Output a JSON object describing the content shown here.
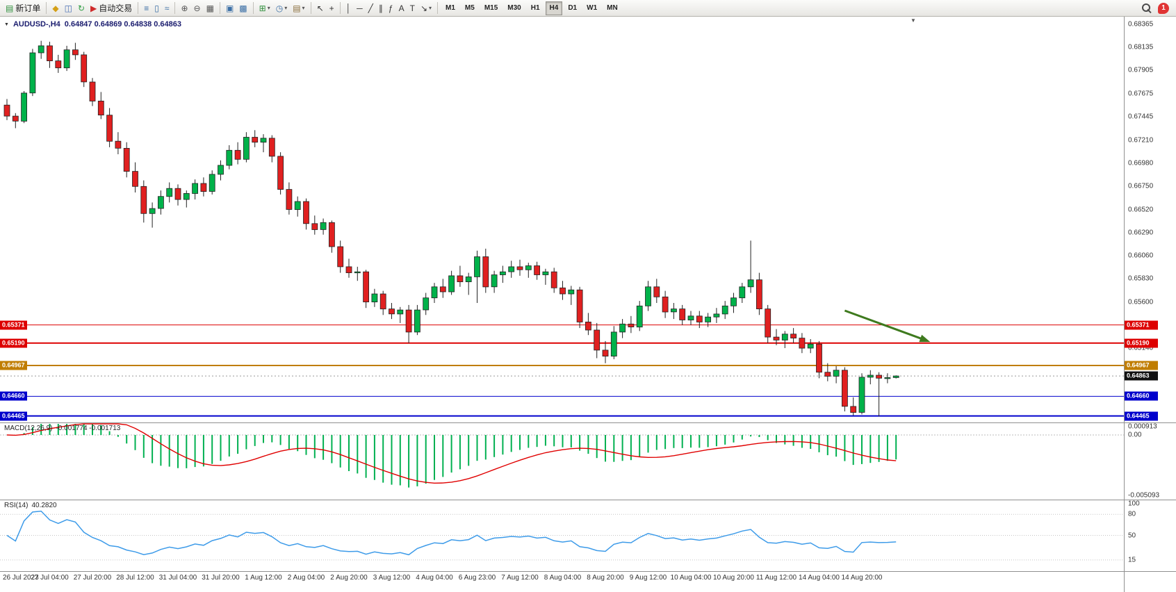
{
  "toolbar": {
    "caret_glyph": "▾",
    "groups": [
      {
        "items": [
          {
            "name": "new-order-button",
            "glyph": "▤",
            "color": "#2f8f3c",
            "label": "新订单"
          }
        ]
      },
      {
        "items": [
          {
            "name": "market-watch-icon",
            "glyph": "◆",
            "color": "#d4a017"
          },
          {
            "name": "data-window-icon",
            "glyph": "◫",
            "color": "#4a6fb5"
          },
          {
            "name": "refresh-icon",
            "glyph": "↻",
            "color": "#2f9e44"
          },
          {
            "name": "autotrading-button",
            "glyph": "▶",
            "color": "#cf2b2b",
            "label": "自动交易"
          }
        ]
      },
      {
        "items": [
          {
            "name": "bar-chart-icon",
            "glyph": "≡",
            "color": "#3a6ea5"
          },
          {
            "name": "candlestick-chart-icon",
            "glyph": "▯",
            "color": "#3a6ea5"
          },
          {
            "name": "line-chart-icon",
            "glyph": "≈",
            "color": "#3a6ea5"
          }
        ]
      },
      {
        "items": [
          {
            "name": "zoom-in-icon",
            "glyph": "⊕",
            "color": "#555555"
          },
          {
            "name": "zoom-out-icon",
            "glyph": "⊖",
            "color": "#555555"
          },
          {
            "name": "tile-windows-icon",
            "glyph": "▦",
            "color": "#555555"
          }
        ]
      },
      {
        "items": [
          {
            "name": "auto-arrange-icon",
            "glyph": "▣",
            "color": "#3a6ea5"
          },
          {
            "name": "cascade-windows-icon",
            "glyph": "▩",
            "color": "#3a6ea5"
          }
        ]
      },
      {
        "items": [
          {
            "name": "indicators-button",
            "glyph": "⊞",
            "color": "#2f8f3c",
            "caret": true
          },
          {
            "name": "periods-button",
            "glyph": "◷",
            "color": "#3a6ea5",
            "caret": true
          },
          {
            "name": "templates-button",
            "glyph": "▤",
            "color": "#8a6d3b",
            "caret": true
          }
        ]
      },
      {
        "items": [
          {
            "name": "cursor-icon",
            "glyph": "↖",
            "color": "#333333"
          },
          {
            "name": "crosshair-icon",
            "glyph": "+",
            "color": "#333333"
          }
        ]
      },
      {
        "items": [
          {
            "name": "vertical-line-icon",
            "glyph": "│",
            "color": "#333333"
          },
          {
            "name": "horizontal-line-icon",
            "glyph": "─",
            "color": "#333333"
          },
          {
            "name": "trendline-icon",
            "glyph": "╱",
            "color": "#333333"
          },
          {
            "name": "channel-icon",
            "glyph": "∥",
            "color": "#333333"
          },
          {
            "name": "fibonacci-icon",
            "glyph": "ƒ",
            "color": "#333333"
          },
          {
            "name": "text-icon",
            "glyph": "A",
            "color": "#333333"
          },
          {
            "name": "label-icon",
            "glyph": "T",
            "color": "#333333"
          },
          {
            "name": "arrows-button",
            "glyph": "↘",
            "color": "#333333",
            "caret": true
          }
        ]
      }
    ],
    "timeframes": {
      "items": [
        "M1",
        "M5",
        "M15",
        "M30",
        "H1",
        "H4",
        "D1",
        "W1",
        "MN"
      ],
      "active": "H4"
    },
    "notification_badge": "1"
  },
  "chart": {
    "title": "AUDUSD-,H4",
    "ohlc_text": "0.64847  0.64869  0.64838  0.64863",
    "symbol_menu_glyph": "▼",
    "shift_marker_glyph": "▼"
  },
  "labels": {
    "macd_name": "MACD(12,26,9)",
    "macd_values": "-0.001774 -0.001713",
    "rsi_name": "RSI(14)",
    "rsi_value": "40.2820"
  },
  "chart_data": {
    "type": "candlestick",
    "symbol": "AUDUSD-",
    "timeframe": "H4",
    "title": "AUDUSD-,H4",
    "current_bar_ohlc": {
      "open": "0.64847",
      "high": "0.64869",
      "low": "0.64838",
      "close": "0.64863"
    },
    "y_ticks": [
      "0.68365",
      "0.68135",
      "0.67905",
      "0.67675",
      "0.67445",
      "0.67210",
      "0.66980",
      "0.66750",
      "0.66520",
      "0.66290",
      "0.66060",
      "0.65830",
      "0.65600",
      "0.65140"
    ],
    "x_labels": [
      "26 Jul 2023",
      "27 Jul 04:00",
      "27 Jul 20:00",
      "28 Jul 12:00",
      "31 Jul 04:00",
      "31 Jul 20:00",
      "1 Aug 12:00",
      "2 Aug 04:00",
      "2 Aug 20:00",
      "3 Aug 12:00",
      "4 Aug 04:00",
      "6 Aug 23:00",
      "7 Aug 12:00",
      "8 Aug 04:00",
      "8 Aug 20:00",
      "9 Aug 12:00",
      "10 Aug 04:00",
      "10 Aug 20:00",
      "11 Aug 12:00",
      "14 Aug 04:00",
      "14 Aug 20:00"
    ],
    "hlines": [
      {
        "price": 0.65371,
        "label": "0.65371",
        "color": "#dd0000",
        "width": 1
      },
      {
        "price": 0.6519,
        "label": "0.65190",
        "color": "#dd0000",
        "width": 2
      },
      {
        "price": 0.64967,
        "label": "0.64967",
        "color": "#c07d00",
        "width": 2
      },
      {
        "price": 0.6466,
        "label": "0.64660",
        "color": "#0000cc",
        "width": 1
      },
      {
        "price": 0.64465,
        "label": "0.64465",
        "color": "#0000cc",
        "width": 2
      }
    ],
    "current_price": {
      "value": 0.64863,
      "label": "0.64863",
      "color": "#111111"
    },
    "up_color": "#00b24a",
    "down_color": "#e02020",
    "annotation_arrow": {
      "from": {
        "bar": 98,
        "price": 0.65514
      },
      "to": {
        "bar": 108,
        "price": 0.65202
      },
      "color": "#3e7a1e"
    },
    "indicators": [
      {
        "name": "MACD",
        "params": "12,26,9",
        "main_value": "-0.001774",
        "signal_value": "-0.001713",
        "y_ticks": [
          "0.000913",
          "0.00",
          "-0.005093"
        ],
        "histogram_color": "#00b050",
        "signal_color": "#e00000"
      },
      {
        "name": "RSI",
        "params": "14",
        "value": "40.2820",
        "y_ticks": [
          "100",
          "80",
          "50",
          "15"
        ],
        "line_color": "#3d9be9"
      }
    ],
    "candles": [
      [
        0.6756,
        0.6762,
        0.6741,
        0.6745
      ],
      [
        0.6745,
        0.6748,
        0.6733,
        0.674
      ],
      [
        0.674,
        0.677,
        0.6738,
        0.6768
      ],
      [
        0.6768,
        0.6812,
        0.6765,
        0.6808
      ],
      [
        0.6808,
        0.682,
        0.6802,
        0.6815
      ],
      [
        0.6815,
        0.6819,
        0.6793,
        0.68
      ],
      [
        0.68,
        0.6806,
        0.6788,
        0.6793
      ],
      [
        0.6793,
        0.6815,
        0.679,
        0.6811
      ],
      [
        0.6811,
        0.6818,
        0.6801,
        0.6806
      ],
      [
        0.6806,
        0.6809,
        0.6774,
        0.6779
      ],
      [
        0.6779,
        0.6783,
        0.6755,
        0.676
      ],
      [
        0.676,
        0.6769,
        0.6742,
        0.6746
      ],
      [
        0.6746,
        0.6753,
        0.6714,
        0.672
      ],
      [
        0.672,
        0.6729,
        0.6707,
        0.6713
      ],
      [
        0.6713,
        0.6719,
        0.6684,
        0.669
      ],
      [
        0.669,
        0.6699,
        0.6669,
        0.6675
      ],
      [
        0.6675,
        0.6681,
        0.6639,
        0.6648
      ],
      [
        0.6648,
        0.6659,
        0.6634,
        0.6653
      ],
      [
        0.6653,
        0.6671,
        0.6647,
        0.6665
      ],
      [
        0.6665,
        0.6679,
        0.6659,
        0.6673
      ],
      [
        0.6673,
        0.6677,
        0.6656,
        0.6662
      ],
      [
        0.6662,
        0.6671,
        0.6654,
        0.6668
      ],
      [
        0.6668,
        0.6682,
        0.6662,
        0.6678
      ],
      [
        0.6678,
        0.6684,
        0.6665,
        0.667
      ],
      [
        0.667,
        0.6691,
        0.6667,
        0.6687
      ],
      [
        0.6687,
        0.6701,
        0.6681,
        0.6696
      ],
      [
        0.6696,
        0.6716,
        0.6692,
        0.6711
      ],
      [
        0.6711,
        0.6719,
        0.6697,
        0.6702
      ],
      [
        0.6702,
        0.6729,
        0.6699,
        0.6724
      ],
      [
        0.6724,
        0.6731,
        0.6714,
        0.6719
      ],
      [
        0.6719,
        0.6727,
        0.6709,
        0.6723
      ],
      [
        0.6723,
        0.6726,
        0.6699,
        0.6705
      ],
      [
        0.6705,
        0.6709,
        0.6667,
        0.6672
      ],
      [
        0.6672,
        0.6679,
        0.6647,
        0.6652
      ],
      [
        0.6652,
        0.6665,
        0.6645,
        0.666
      ],
      [
        0.666,
        0.6663,
        0.6632,
        0.6638
      ],
      [
        0.6638,
        0.6646,
        0.6627,
        0.6632
      ],
      [
        0.6632,
        0.6643,
        0.6627,
        0.6639
      ],
      [
        0.6639,
        0.6641,
        0.6609,
        0.6615
      ],
      [
        0.6615,
        0.6621,
        0.6589,
        0.6595
      ],
      [
        0.6595,
        0.6603,
        0.6584,
        0.6589
      ],
      [
        0.6589,
        0.6595,
        0.6581,
        0.659
      ],
      [
        0.659,
        0.6592,
        0.6554,
        0.656
      ],
      [
        0.656,
        0.6573,
        0.6555,
        0.6568
      ],
      [
        0.6568,
        0.6571,
        0.6547,
        0.6553
      ],
      [
        0.6553,
        0.6559,
        0.6543,
        0.6548
      ],
      [
        0.6548,
        0.6555,
        0.6539,
        0.6552
      ],
      [
        0.6552,
        0.6557,
        0.6519,
        0.653
      ],
      [
        0.653,
        0.6557,
        0.6527,
        0.6552
      ],
      [
        0.6552,
        0.6569,
        0.6547,
        0.6564
      ],
      [
        0.6564,
        0.6579,
        0.6559,
        0.6575
      ],
      [
        0.6575,
        0.6583,
        0.6564,
        0.657
      ],
      [
        0.657,
        0.6591,
        0.6567,
        0.6586
      ],
      [
        0.6586,
        0.6596,
        0.6575,
        0.658
      ],
      [
        0.658,
        0.6589,
        0.6567,
        0.6585
      ],
      [
        0.6585,
        0.6611,
        0.6559,
        0.6605
      ],
      [
        0.6605,
        0.6613,
        0.6569,
        0.6575
      ],
      [
        0.6575,
        0.6591,
        0.6569,
        0.6587
      ],
      [
        0.6587,
        0.6596,
        0.6579,
        0.659
      ],
      [
        0.659,
        0.6601,
        0.6584,
        0.6595
      ],
      [
        0.6595,
        0.6602,
        0.6586,
        0.6592
      ],
      [
        0.6592,
        0.6599,
        0.6584,
        0.6596
      ],
      [
        0.6596,
        0.66,
        0.6582,
        0.6587
      ],
      [
        0.6587,
        0.6593,
        0.6577,
        0.659
      ],
      [
        0.659,
        0.6594,
        0.6569,
        0.6574
      ],
      [
        0.6574,
        0.6581,
        0.6562,
        0.6568
      ],
      [
        0.6568,
        0.6576,
        0.6557,
        0.6572
      ],
      [
        0.6572,
        0.6575,
        0.6534,
        0.654
      ],
      [
        0.654,
        0.6549,
        0.6527,
        0.6532
      ],
      [
        0.6532,
        0.6539,
        0.6504,
        0.6512
      ],
      [
        0.6512,
        0.6521,
        0.6499,
        0.6506
      ],
      [
        0.6506,
        0.6536,
        0.6503,
        0.653
      ],
      [
        0.653,
        0.6543,
        0.6524,
        0.6538
      ],
      [
        0.6538,
        0.6546,
        0.6529,
        0.6535
      ],
      [
        0.6535,
        0.6561,
        0.6531,
        0.6556
      ],
      [
        0.6556,
        0.6581,
        0.6551,
        0.6575
      ],
      [
        0.6575,
        0.6583,
        0.6559,
        0.6565
      ],
      [
        0.6565,
        0.6571,
        0.6544,
        0.655
      ],
      [
        0.655,
        0.6559,
        0.6543,
        0.6553
      ],
      [
        0.6553,
        0.6557,
        0.6537,
        0.6542
      ],
      [
        0.6542,
        0.6551,
        0.6537,
        0.6546
      ],
      [
        0.6546,
        0.6551,
        0.6534,
        0.654
      ],
      [
        0.654,
        0.6549,
        0.6535,
        0.6545
      ],
      [
        0.6545,
        0.6554,
        0.6539,
        0.6548
      ],
      [
        0.6548,
        0.6561,
        0.6543,
        0.6556
      ],
      [
        0.6556,
        0.6569,
        0.6549,
        0.6564
      ],
      [
        0.6564,
        0.6579,
        0.6559,
        0.6575
      ],
      [
        0.6575,
        0.6621,
        0.6569,
        0.6582
      ],
      [
        0.6582,
        0.6589,
        0.6547,
        0.6553
      ],
      [
        0.6553,
        0.6557,
        0.6519,
        0.6525
      ],
      [
        0.6525,
        0.6533,
        0.6517,
        0.6522
      ],
      [
        0.6522,
        0.6531,
        0.6514,
        0.6528
      ],
      [
        0.6528,
        0.6534,
        0.6519,
        0.6524
      ],
      [
        0.6524,
        0.6529,
        0.6509,
        0.6514
      ],
      [
        0.6514,
        0.6523,
        0.6509,
        0.6518
      ],
      [
        0.6518,
        0.6521,
        0.6484,
        0.649
      ],
      [
        0.649,
        0.6499,
        0.6481,
        0.6486
      ],
      [
        0.6486,
        0.6496,
        0.6479,
        0.6492
      ],
      [
        0.6492,
        0.6495,
        0.6451,
        0.6456
      ],
      [
        0.6456,
        0.6465,
        0.6447,
        0.645
      ],
      [
        0.645,
        0.6489,
        0.6448,
        0.6485
      ],
      [
        0.6485,
        0.6492,
        0.6478,
        0.6487
      ],
      [
        0.6487,
        0.649,
        0.6446,
        0.6484
      ],
      [
        0.6484,
        0.6489,
        0.6479,
        0.64847
      ],
      [
        0.64847,
        0.64869,
        0.64838,
        0.64863
      ]
    ]
  }
}
